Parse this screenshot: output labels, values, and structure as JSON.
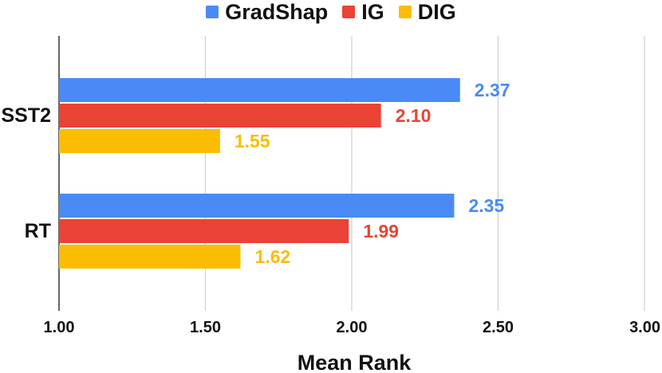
{
  "chart_data": {
    "type": "bar",
    "orientation": "horizontal",
    "categories": [
      "SST2",
      "RT"
    ],
    "series": [
      {
        "name": "GradShap",
        "color": "#4a8af4",
        "values": [
          2.37,
          2.35
        ],
        "labels": [
          "2.37",
          "2.35"
        ]
      },
      {
        "name": "IG",
        "color": "#ea4335",
        "values": [
          2.1,
          1.99
        ],
        "labels": [
          "2.10",
          "1.99"
        ]
      },
      {
        "name": "DIG",
        "color": "#fbbc04",
        "values": [
          1.55,
          1.62
        ],
        "labels": [
          "1.55",
          "1.62"
        ]
      }
    ],
    "xlabel": "Mean Rank",
    "ylabel": "",
    "xlim": [
      1.0,
      3.0
    ],
    "xticks": [
      1.0,
      1.5,
      2.0,
      2.5,
      3.0
    ],
    "xtick_labels": [
      "1.00",
      "1.50",
      "2.00",
      "2.50",
      "3.00"
    ],
    "grid": "vertical",
    "legend_position": "top"
  }
}
